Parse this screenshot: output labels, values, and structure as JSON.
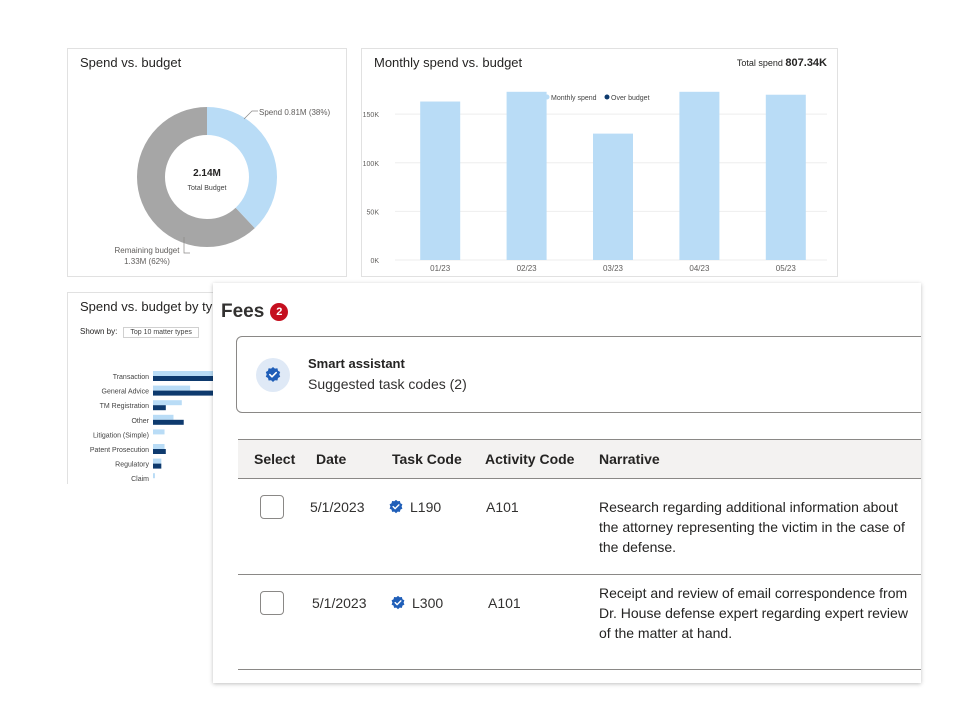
{
  "donut": {
    "title": "Spend vs. budget",
    "center_value": "2.14M",
    "center_label": "Total Budget",
    "spend_label": "Spend 0.81M (38%)",
    "remaining_label_1": "Remaining budget",
    "remaining_label_2": "1.33M (62%)",
    "spend_fraction": 0.38,
    "colors": {
      "spend": "#b9dcf6",
      "remaining": "#a6a6a6"
    }
  },
  "monthly": {
    "title": "Monthly spend vs. budget",
    "total_label": "Total spend",
    "total_value": "807.34K",
    "legend": [
      "Monthly spend",
      "Over budget"
    ]
  },
  "by_type": {
    "title": "Spend vs. budget by type",
    "shown_by_label": "Shown by:",
    "shown_by_value": "Top 10 matter types"
  },
  "chart_data": [
    {
      "type": "bar",
      "title": "Monthly spend vs. budget",
      "categories": [
        "01/23",
        "02/23",
        "03/23",
        "04/23",
        "05/23"
      ],
      "series": [
        {
          "name": "Monthly spend",
          "values": [
            163000,
            173000,
            130000,
            173000,
            170000
          ]
        }
      ],
      "yticks": [
        "150K",
        "100K",
        "50K",
        "0K"
      ],
      "ylim": [
        0,
        180000
      ],
      "legend_position": "top-center",
      "colors": {
        "monthly": "#b9dcf6",
        "over": "#0e3a6e"
      }
    },
    {
      "type": "bar",
      "orientation": "horizontal",
      "title": "Spend vs. budget by type",
      "categories": [
        "Transaction",
        "General Advice",
        "TM Registration",
        "Other",
        "Litigation (Simple)",
        "Patent Prosecution",
        "Regulatory",
        "Claim"
      ],
      "series": [
        {
          "values": [
            0.95,
            0.58,
            0.45,
            0.32,
            0.18,
            0.18,
            0.13,
            0.03
          ]
        },
        {
          "values": [
            0.95,
            0.95,
            0.2,
            0.48,
            0,
            0.2,
            0.13,
            0
          ]
        }
      ],
      "colors": [
        "#b9dcf6",
        "#0e3a6e"
      ]
    }
  ],
  "fees": {
    "title": "Fees",
    "badge": "2",
    "assistant": {
      "title": "Smart assistant",
      "subtitle": "Suggested task codes (2)"
    },
    "columns": [
      "Select",
      "Date",
      "Task Code",
      "Activity Code",
      "Narrative"
    ],
    "rows": [
      {
        "date": "5/1/2023",
        "task_code": "L190",
        "activity_code": "A101",
        "narrative": "Research regarding additional information about the attorney representing the victim in the case of the defense."
      },
      {
        "date": "5/1/2023",
        "task_code": "L300",
        "activity_code": "A101",
        "narrative": "Receipt and review of email correspondence from Dr. House defense expert regarding expert review of the matter at hand."
      }
    ]
  }
}
